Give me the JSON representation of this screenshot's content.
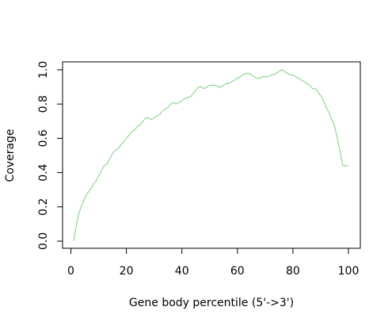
{
  "chart_data": {
    "type": "line",
    "title": "",
    "xlabel": "Gene body percentile (5'->3')",
    "ylabel": "Coverage",
    "xlim": [
      0,
      100
    ],
    "ylim": [
      0,
      1
    ],
    "x_ticks": [
      "0",
      "20",
      "40",
      "60",
      "80",
      "100"
    ],
    "y_ticks": [
      "0.0",
      "0.2",
      "0.4",
      "0.6",
      "0.8",
      "1.0"
    ],
    "grid": false,
    "legend": "none",
    "line_color": "#7fd07f",
    "series": [
      {
        "x": [
          1,
          2,
          3,
          4,
          5,
          6,
          7,
          8,
          9,
          10,
          11,
          12,
          13,
          14,
          15,
          16,
          17,
          18,
          19,
          20,
          21,
          22,
          23,
          24,
          25,
          26,
          27,
          28,
          29,
          30,
          31,
          32,
          33,
          34,
          35,
          36,
          37,
          38,
          39,
          40,
          41,
          42,
          43,
          44,
          45,
          46,
          47,
          48,
          49,
          50,
          51,
          52,
          53,
          54,
          55,
          56,
          57,
          58,
          59,
          60,
          61,
          62,
          63,
          64,
          65,
          66,
          67,
          68,
          69,
          70,
          71,
          72,
          73,
          74,
          75,
          76,
          77,
          78,
          79,
          80,
          81,
          82,
          83,
          84,
          85,
          86,
          87,
          88,
          89,
          90,
          91,
          92,
          93,
          94,
          95,
          96,
          97,
          98,
          99,
          100
        ],
        "y": [
          0.0,
          0.1,
          0.17,
          0.21,
          0.25,
          0.28,
          0.3,
          0.33,
          0.35,
          0.38,
          0.41,
          0.44,
          0.45,
          0.48,
          0.51,
          0.53,
          0.54,
          0.56,
          0.58,
          0.6,
          0.62,
          0.64,
          0.65,
          0.67,
          0.68,
          0.7,
          0.72,
          0.72,
          0.71,
          0.72,
          0.73,
          0.74,
          0.76,
          0.77,
          0.78,
          0.8,
          0.81,
          0.8,
          0.81,
          0.82,
          0.83,
          0.84,
          0.84,
          0.86,
          0.88,
          0.9,
          0.9,
          0.89,
          0.9,
          0.91,
          0.91,
          0.91,
          0.9,
          0.9,
          0.91,
          0.92,
          0.92,
          0.93,
          0.94,
          0.95,
          0.96,
          0.97,
          0.98,
          0.98,
          0.97,
          0.96,
          0.95,
          0.95,
          0.96,
          0.96,
          0.96,
          0.97,
          0.97,
          0.98,
          0.99,
          1.0,
          0.99,
          0.98,
          0.97,
          0.97,
          0.96,
          0.95,
          0.94,
          0.93,
          0.92,
          0.91,
          0.89,
          0.89,
          0.87,
          0.85,
          0.82,
          0.78,
          0.75,
          0.71,
          0.67,
          0.6,
          0.52,
          0.44,
          0.44,
          0.44
        ]
      }
    ]
  }
}
